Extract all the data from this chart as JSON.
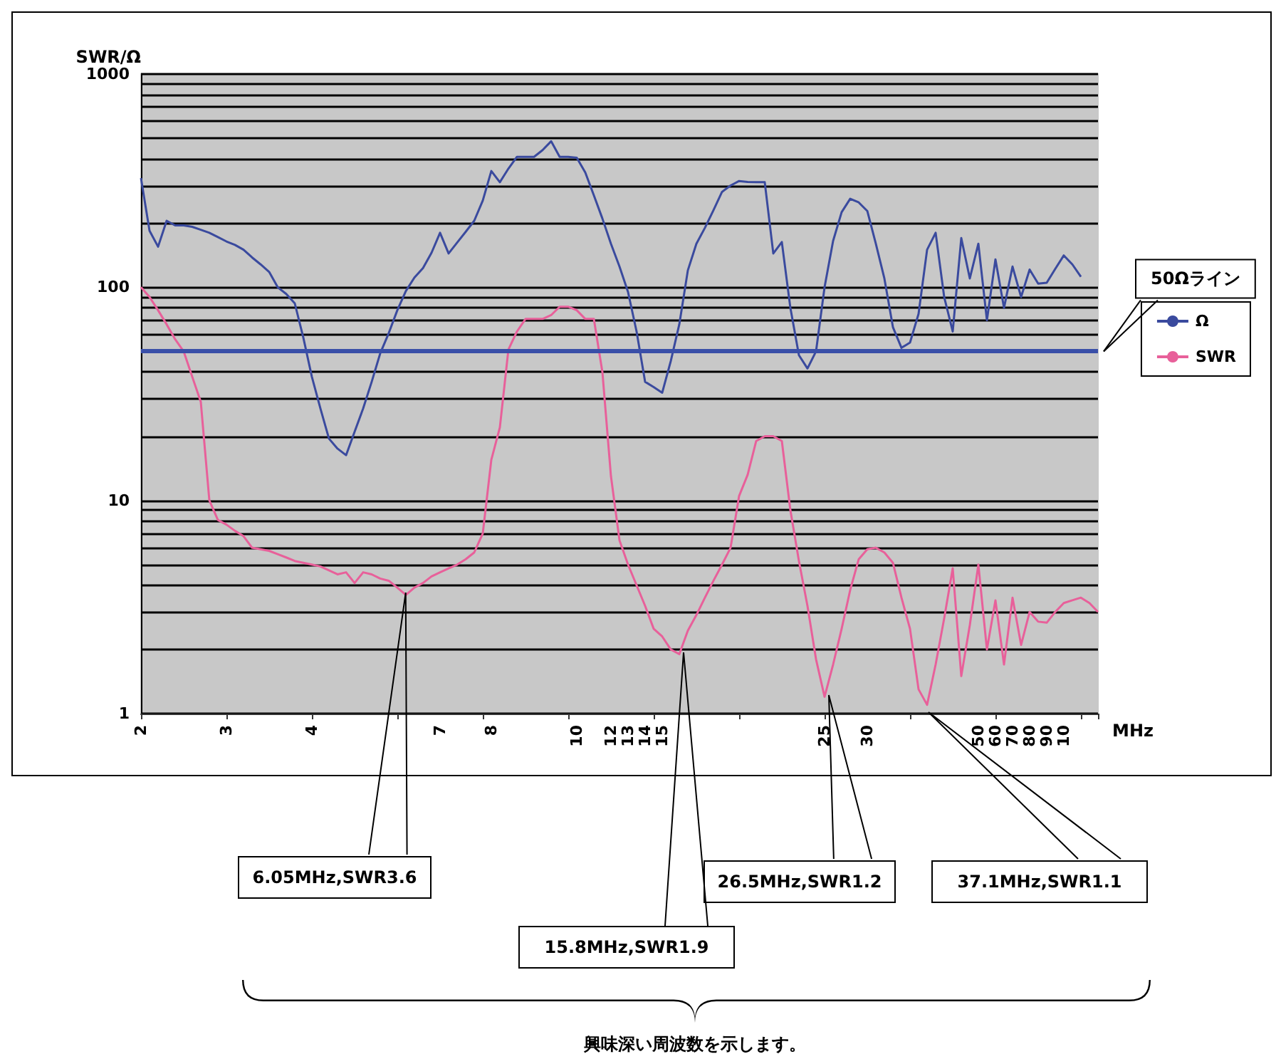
{
  "chart_data": {
    "type": "line",
    "ylabel": "SWR/Ω",
    "xlabel": "MHz",
    "categories": [
      "2",
      null,
      null,
      null,
      null,
      null,
      null,
      null,
      null,
      null,
      "3",
      null,
      null,
      null,
      null,
      null,
      null,
      null,
      null,
      null,
      "4",
      null,
      null,
      null,
      null,
      null,
      null,
      null,
      null,
      null,
      null,
      null,
      null,
      null,
      null,
      "7",
      null,
      null,
      null,
      null,
      null,
      "8",
      null,
      null,
      null,
      null,
      null,
      null,
      null,
      null,
      null,
      "10",
      null,
      null,
      null,
      "12",
      null,
      "13",
      null,
      "14",
      null,
      "15",
      null,
      null,
      null,
      null,
      null,
      null,
      null,
      null,
      null,
      null,
      null,
      null,
      null,
      null,
      null,
      null,
      null,
      null,
      "25",
      null,
      null,
      null,
      null,
      "30",
      null,
      null,
      null,
      null,
      null,
      null,
      null,
      null,
      null,
      null,
      null,
      null,
      "50",
      null,
      "60",
      null,
      "70",
      null,
      "80",
      null,
      "90",
      null,
      "10",
      null,
      null,
      null,
      null
    ],
    "series": [
      {
        "name": "Ω",
        "color": "#3a4a9e",
        "values": [
          325,
          184,
          155,
          205,
          195,
          195,
          192,
          186,
          180,
          172,
          164,
          158,
          150,
          138,
          128,
          118,
          100,
          93,
          84,
          58,
          38,
          27,
          19.5,
          17.5,
          16.3,
          21,
          27,
          36,
          49,
          61,
          78,
          96,
          111,
          123,
          145,
          180,
          144,
          162,
          182,
          205,
          255,
          351,
          311,
          360,
          409,
          409,
          409,
          440,
          484,
          409,
          409,
          405,
          345,
          270,
          210,
          160,
          125,
          95,
          62,
          36,
          34,
          32,
          45,
          67,
          120,
          160,
          190,
          230,
          280,
          300,
          315,
          312,
          311,
          311,
          144,
          163,
          80,
          48,
          41.6,
          50,
          100,
          165,
          225,
          260,
          250,
          228,
          160,
          110,
          65,
          52,
          55,
          75,
          150,
          180,
          90,
          62,
          170,
          110,
          160,
          70,
          135,
          80,
          125,
          90,
          121,
          104,
          105,
          122,
          141,
          128,
          112,
          null,
          null
        ]
      },
      {
        "name": "SWR",
        "color": "#e8609a",
        "values": [
          100,
          90,
          78,
          67,
          57,
          50,
          38,
          29,
          10,
          8.1,
          7.7,
          7.2,
          6.8,
          6.0,
          5.9,
          5.8,
          5.6,
          5.4,
          5.2,
          5.1,
          5.0,
          4.9,
          4.7,
          4.5,
          4.6,
          4.1,
          4.6,
          4.5,
          4.3,
          4.2,
          3.9,
          3.6,
          3.9,
          4.1,
          4.4,
          4.6,
          4.8,
          5.0,
          5.3,
          5.7,
          7.0,
          15.5,
          22,
          51,
          62,
          71,
          71,
          71,
          74,
          81,
          81,
          78,
          71,
          71,
          40,
          13,
          6.5,
          5.0,
          4.0,
          3.2,
          2.5,
          2.3,
          2.0,
          1.9,
          2.45,
          2.9,
          3.5,
          4.2,
          5.0,
          6.0,
          10.5,
          13.2,
          19,
          20,
          20,
          19,
          9,
          5.2,
          3.2,
          1.8,
          1.2,
          1.7,
          2.5,
          3.8,
          5.3,
          5.9,
          6.0,
          5.7,
          5.1,
          3.5,
          2.5,
          1.3,
          1.1,
          1.7,
          2.8,
          4.8,
          1.5,
          2.6,
          5.0,
          2.0,
          3.4,
          1.7,
          3.5,
          2.1,
          3.0,
          2.7,
          2.67,
          3.0,
          3.3,
          3.4,
          3.5,
          3.3,
          3.0
        ]
      }
    ],
    "log": true,
    "ylim": [
      1,
      1000
    ],
    "yticks": [
      1,
      {
        "value": 2,
        "label": null
      },
      {
        "value": 3,
        "label": null
      },
      {
        "value": 4,
        "label": null
      },
      {
        "value": 5,
        "label": null
      },
      {
        "value": 6,
        "label": null
      },
      {
        "value": 7,
        "label": null
      },
      {
        "value": 8,
        "label": null
      },
      {
        "value": 9,
        "label": null
      },
      10,
      {
        "value": 20,
        "label": null
      },
      {
        "value": 30,
        "label": null
      },
      {
        "value": 40,
        "label": null
      },
      {
        "value": 50,
        "label": null
      },
      {
        "value": 60,
        "label": null
      },
      {
        "value": 70,
        "label": null
      },
      {
        "value": 80,
        "label": null
      },
      {
        "value": 90,
        "label": null
      },
      100,
      {
        "value": 200,
        "label": null
      },
      {
        "value": 300,
        "label": null
      },
      {
        "value": 400,
        "label": null
      },
      {
        "value": 500,
        "label": null
      },
      {
        "value": 600,
        "label": null
      },
      {
        "value": 700,
        "label": null
      },
      {
        "value": 800,
        "label": null
      },
      {
        "value": 900,
        "label": null
      },
      1000
    ],
    "grid": "y",
    "legend": "right",
    "ref_lines": [
      {
        "axis": "y",
        "value": 50,
        "label": "50Ωライン",
        "color": "#3a4fa8"
      }
    ],
    "annotations": [
      "6.05MHz,SWR3.6",
      "15.8MHz,SWR1.9",
      "26.5MHz,SWR1.2",
      "37.1MHz,SWR1.1",
      "興味深い周波数を示します。"
    ]
  }
}
